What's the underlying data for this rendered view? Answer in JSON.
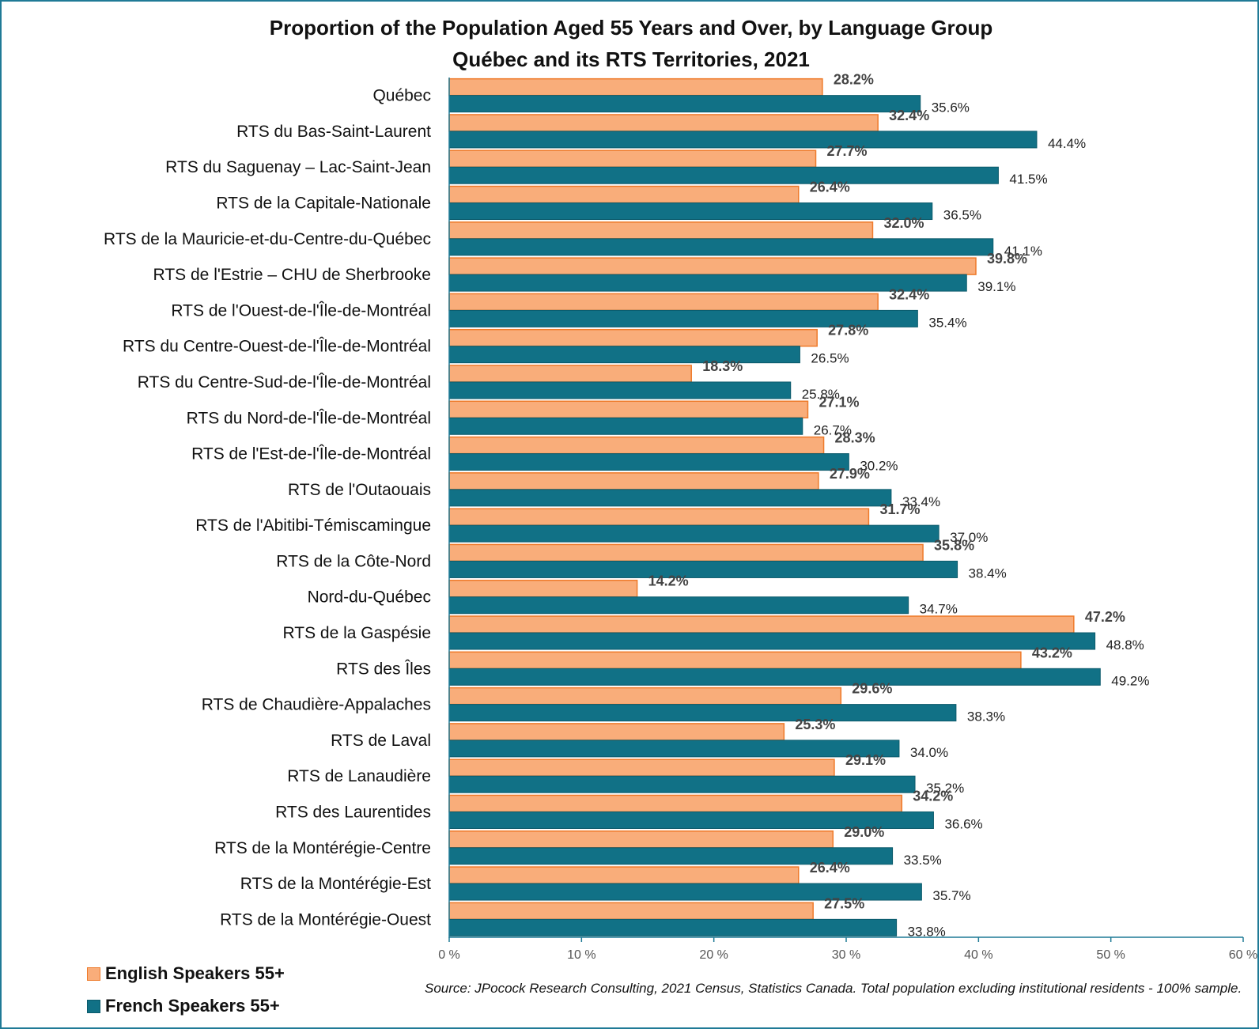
{
  "chart_data": {
    "type": "bar",
    "orientation": "horizontal",
    "title": "Proportion of the Population Aged 55 Years and Over, by Language Group",
    "subtitle": "Québec and its RTS Territories, 2021",
    "categories": [
      "Québec",
      "RTS du Bas-Saint-Laurent",
      "RTS du Saguenay – Lac-Saint-Jean",
      "RTS de la Capitale-Nationale",
      "RTS de la Mauricie-et-du-Centre-du-Québec",
      "RTS de l'Estrie – CHU de Sherbrooke",
      "RTS de l'Ouest-de-l'Île-de-Montréal",
      "RTS du Centre-Ouest-de-l'Île-de-Montréal",
      "RTS du Centre-Sud-de-l'Île-de-Montréal",
      "RTS du Nord-de-l'Île-de-Montréal",
      "RTS de l'Est-de-l'Île-de-Montréal",
      "RTS de l'Outaouais",
      "RTS de l'Abitibi-Témiscamingue",
      "RTS de la Côte-Nord",
      "Nord-du-Québec",
      "RTS de la Gaspésie",
      "RTS des Îles",
      "RTS de Chaudière-Appalaches",
      "RTS de Laval",
      "RTS de Lanaudière",
      "RTS des Laurentides",
      "RTS de la Montérégie-Centre",
      "RTS de la Montérégie-Est",
      "RTS de la Montérégie-Ouest"
    ],
    "series": [
      {
        "name": "English Speakers 55+",
        "color": "#f9ad7a",
        "stroke": "#ee7a2a",
        "values": [
          28.2,
          32.4,
          27.7,
          26.4,
          32.0,
          39.8,
          32.4,
          27.8,
          18.3,
          27.1,
          28.3,
          27.9,
          31.7,
          35.8,
          14.2,
          47.2,
          43.2,
          29.6,
          25.3,
          29.1,
          34.2,
          29.0,
          26.4,
          27.5
        ]
      },
      {
        "name": "French Speakers 55+",
        "color": "#117186",
        "stroke": "#0b5a6b",
        "values": [
          35.6,
          44.4,
          41.5,
          36.5,
          41.1,
          39.1,
          35.4,
          26.5,
          25.8,
          26.7,
          30.2,
          33.4,
          37.0,
          38.4,
          34.7,
          48.8,
          49.2,
          38.3,
          34.0,
          35.2,
          36.6,
          33.5,
          35.7,
          33.8
        ]
      }
    ],
    "xlim": [
      0,
      60
    ],
    "ticks": [
      "0 %",
      "10 %",
      "20 %",
      "30 %",
      "40 %",
      "50 %",
      "60 %"
    ],
    "grid": false,
    "legend": "bottom-left",
    "source": "Source: JPocock Research Consulting, 2021 Census, Statistics Canada. Total population excluding institutional residents - 100% sample."
  }
}
